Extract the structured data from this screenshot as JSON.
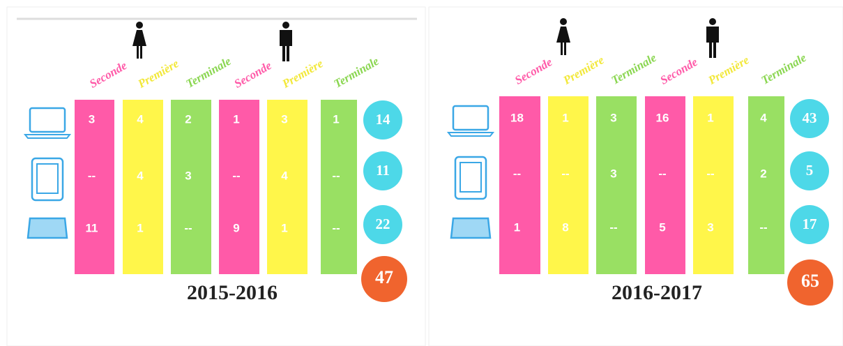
{
  "panels": [
    {
      "year": "2015-2016",
      "columns": [
        {
          "label": "Seconde",
          "values": [
            3,
            "--",
            11
          ]
        },
        {
          "label": "Première",
          "values": [
            4,
            4,
            1
          ]
        },
        {
          "label": "Terminale",
          "values": [
            2,
            3,
            "--"
          ]
        },
        {
          "label": "Seconde",
          "values": [
            1,
            "--",
            9
          ]
        },
        {
          "label": "Première",
          "values": [
            3,
            4,
            1
          ]
        },
        {
          "label": "Terminale",
          "values": [
            1,
            "--",
            "--"
          ]
        }
      ],
      "totals": [
        14,
        11,
        22
      ],
      "grand_total": 47
    },
    {
      "year": "2016-2017",
      "columns": [
        {
          "label": "Seconde",
          "values": [
            18,
            "--",
            1
          ]
        },
        {
          "label": "Première",
          "values": [
            1,
            "--",
            8
          ]
        },
        {
          "label": "Terminale",
          "values": [
            3,
            3,
            "--"
          ]
        },
        {
          "label": "Seconde",
          "values": [
            16,
            "--",
            5
          ]
        },
        {
          "label": "Première",
          "values": [
            1,
            "--",
            3
          ]
        },
        {
          "label": "Terminale",
          "values": [
            4,
            2,
            "--"
          ]
        }
      ],
      "totals": [
        43,
        5,
        17
      ],
      "grand_total": 65
    }
  ]
}
